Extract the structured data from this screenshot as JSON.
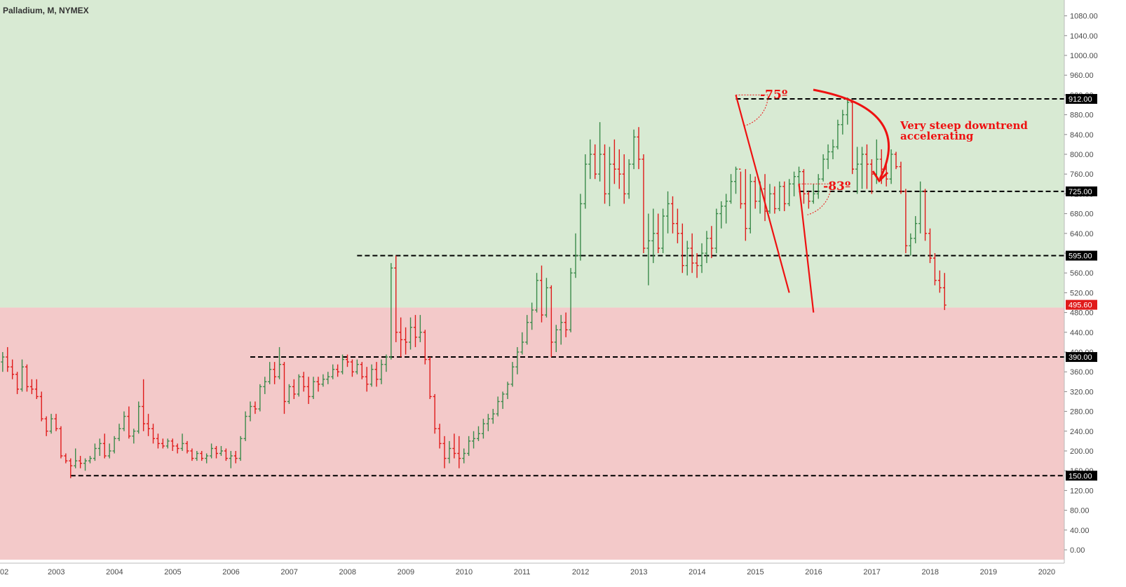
{
  "colors": {
    "up": "#3a8a4a",
    "down": "#e01a1a",
    "bg_bull": "#d8ead3",
    "bg_bear": "#f3c9c9",
    "line": "#000000",
    "annotation": "#ee1111",
    "tag_dark": "#000000",
    "tag_last": "#e01a1a"
  },
  "chart_data": {
    "type": "ohlc",
    "title": "Palladium, M, NYMEX",
    "interval": "monthly",
    "y_range": [
      -20,
      1120
    ],
    "y_ticks": [
      "0.00",
      "40.00",
      "80.00",
      "120.00",
      "160.00",
      "200.00",
      "240.00",
      "280.00",
      "320.00",
      "360.00",
      "400.00",
      "440.00",
      "480.00",
      "520.00",
      "560.00",
      "600.00",
      "640.00",
      "680.00",
      "720.00",
      "760.00",
      "800.00",
      "840.00",
      "880.00",
      "920.00",
      "960.00",
      "1000.00",
      "1040.00",
      "1080.00"
    ],
    "x_start": "2002-01",
    "x_end": "2020-03",
    "x_ticks": [
      "02",
      "2003",
      "2004",
      "2005",
      "2006",
      "2007",
      "2008",
      "2009",
      "2010",
      "2011",
      "2012",
      "2013",
      "2014",
      "2015",
      "2016",
      "2017",
      "2018",
      "2019",
      "2020"
    ],
    "zones": [
      {
        "name": "bullish",
        "from": 490,
        "to": 1120
      },
      {
        "name": "bearish",
        "from": -20,
        "to": 490
      }
    ],
    "levels": [
      {
        "value": 912,
        "label": "912.00",
        "start": "2014-09"
      },
      {
        "value": 725,
        "label": "725.00",
        "start": "2015-10"
      },
      {
        "value": 595,
        "label": "595.00",
        "start": "2008-03"
      },
      {
        "value": 390,
        "label": "390.00",
        "start": "2006-05"
      },
      {
        "value": 150,
        "label": "150.00",
        "start": "2003-04"
      }
    ],
    "last_price": {
      "value": 495.6,
      "label": "495.60"
    },
    "trendlines": [
      {
        "from": [
          "2014-09",
          920
        ],
        "to": [
          "2015-08",
          520
        ]
      },
      {
        "from": [
          "2015-10",
          740
        ],
        "to": [
          "2016-01",
          480
        ]
      }
    ],
    "angle_labels": [
      {
        "text": "-75º",
        "at": [
          "2015-02",
          910
        ]
      },
      {
        "text": "-83º",
        "at": [
          "2016-03",
          725
        ]
      }
    ],
    "annotation": {
      "lines": [
        "Very steep downtrend",
        "accelerating"
      ],
      "at": [
        "2016-08",
        832
      ]
    },
    "ohlc": [
      [
        "2002-01",
        400,
        405,
        370,
        380
      ],
      [
        "2002-02",
        380,
        400,
        360,
        390
      ],
      [
        "2002-03",
        390,
        410,
        360,
        370
      ],
      [
        "2002-04",
        370,
        385,
        345,
        355
      ],
      [
        "2002-05",
        355,
        360,
        315,
        325
      ],
      [
        "2002-06",
        325,
        385,
        320,
        370
      ],
      [
        "2002-07",
        370,
        375,
        320,
        330
      ],
      [
        "2002-08",
        330,
        345,
        315,
        325
      ],
      [
        "2002-09",
        325,
        345,
        305,
        310
      ],
      [
        "2002-10",
        310,
        320,
        260,
        265
      ],
      [
        "2002-11",
        265,
        270,
        230,
        240
      ],
      [
        "2002-12",
        240,
        275,
        235,
        265
      ],
      [
        "2003-01",
        265,
        275,
        240,
        245
      ],
      [
        "2003-02",
        245,
        250,
        185,
        190
      ],
      [
        "2003-03",
        190,
        195,
        175,
        180
      ],
      [
        "2003-04",
        180,
        185,
        145,
        170
      ],
      [
        "2003-05",
        170,
        205,
        165,
        180
      ],
      [
        "2003-06",
        180,
        190,
        165,
        175
      ],
      [
        "2003-07",
        175,
        185,
        160,
        180
      ],
      [
        "2003-08",
        180,
        190,
        175,
        185
      ],
      [
        "2003-09",
        185,
        215,
        180,
        205
      ],
      [
        "2003-10",
        205,
        225,
        190,
        215
      ],
      [
        "2003-11",
        215,
        235,
        185,
        190
      ],
      [
        "2003-12",
        190,
        215,
        185,
        200
      ],
      [
        "2004-01",
        200,
        230,
        195,
        225
      ],
      [
        "2004-02",
        225,
        255,
        220,
        245
      ],
      [
        "2004-03",
        245,
        280,
        240,
        270
      ],
      [
        "2004-04",
        270,
        290,
        225,
        230
      ],
      [
        "2004-05",
        230,
        245,
        215,
        240
      ],
      [
        "2004-06",
        240,
        300,
        235,
        290
      ],
      [
        "2004-07",
        290,
        345,
        240,
        255
      ],
      [
        "2004-08",
        255,
        275,
        230,
        245
      ],
      [
        "2004-09",
        245,
        255,
        215,
        225
      ],
      [
        "2004-10",
        225,
        235,
        205,
        215
      ],
      [
        "2004-11",
        215,
        225,
        205,
        210
      ],
      [
        "2004-12",
        210,
        225,
        205,
        220
      ],
      [
        "2005-01",
        220,
        225,
        200,
        210
      ],
      [
        "2005-02",
        210,
        215,
        195,
        205
      ],
      [
        "2005-03",
        205,
        235,
        200,
        215
      ],
      [
        "2005-04",
        215,
        220,
        195,
        200
      ],
      [
        "2005-05",
        200,
        205,
        180,
        185
      ],
      [
        "2005-06",
        185,
        200,
        180,
        195
      ],
      [
        "2005-07",
        195,
        200,
        180,
        185
      ],
      [
        "2005-08",
        185,
        195,
        175,
        190
      ],
      [
        "2005-09",
        190,
        215,
        185,
        205
      ],
      [
        "2005-10",
        205,
        210,
        185,
        195
      ],
      [
        "2005-11",
        195,
        210,
        190,
        200
      ],
      [
        "2005-12",
        200,
        205,
        180,
        185
      ],
      [
        "2006-01",
        185,
        200,
        165,
        190
      ],
      [
        "2006-02",
        190,
        200,
        175,
        185
      ],
      [
        "2006-03",
        185,
        230,
        180,
        225
      ],
      [
        "2006-04",
        225,
        280,
        220,
        270
      ],
      [
        "2006-05",
        270,
        300,
        260,
        290
      ],
      [
        "2006-06",
        290,
        300,
        275,
        285
      ],
      [
        "2006-07",
        285,
        335,
        280,
        330
      ],
      [
        "2006-08",
        330,
        350,
        315,
        340
      ],
      [
        "2006-09",
        340,
        380,
        335,
        365
      ],
      [
        "2006-10",
        365,
        380,
        335,
        350
      ],
      [
        "2006-11",
        350,
        410,
        345,
        375
      ],
      [
        "2006-12",
        375,
        380,
        275,
        300
      ],
      [
        "2007-01",
        300,
        335,
        295,
        330
      ],
      [
        "2007-02",
        330,
        345,
        305,
        315
      ],
      [
        "2007-03",
        315,
        355,
        310,
        350
      ],
      [
        "2007-04",
        350,
        360,
        320,
        330
      ],
      [
        "2007-05",
        330,
        350,
        295,
        310
      ],
      [
        "2007-06",
        310,
        350,
        305,
        340
      ],
      [
        "2007-07",
        340,
        350,
        320,
        335
      ],
      [
        "2007-08",
        335,
        355,
        330,
        345
      ],
      [
        "2007-09",
        345,
        360,
        335,
        350
      ],
      [
        "2007-10",
        350,
        375,
        345,
        365
      ],
      [
        "2007-11",
        365,
        375,
        350,
        360
      ],
      [
        "2007-12",
        360,
        395,
        355,
        385
      ],
      [
        "2008-01",
        385,
        395,
        370,
        380
      ],
      [
        "2008-02",
        380,
        385,
        350,
        360
      ],
      [
        "2008-03",
        360,
        385,
        355,
        375
      ],
      [
        "2008-04",
        375,
        380,
        345,
        350
      ],
      [
        "2008-05",
        350,
        370,
        320,
        335
      ],
      [
        "2008-06",
        335,
        375,
        330,
        365
      ],
      [
        "2008-07",
        365,
        380,
        330,
        345
      ],
      [
        "2008-08",
        345,
        385,
        335,
        375
      ],
      [
        "2008-09",
        375,
        395,
        360,
        390
      ],
      [
        "2008-10",
        390,
        580,
        385,
        570
      ],
      [
        "2008-11",
        570,
        595,
        420,
        440
      ],
      [
        "2008-12",
        440,
        470,
        390,
        425
      ],
      [
        "2009-01",
        425,
        450,
        395,
        420
      ],
      [
        "2009-02",
        420,
        470,
        405,
        450
      ],
      [
        "2009-03",
        450,
        475,
        410,
        430
      ],
      [
        "2009-04",
        430,
        475,
        420,
        440
      ],
      [
        "2009-05",
        440,
        445,
        375,
        385
      ],
      [
        "2009-06",
        385,
        390,
        305,
        310
      ],
      [
        "2009-07",
        310,
        315,
        235,
        245
      ],
      [
        "2009-08",
        245,
        255,
        205,
        215
      ],
      [
        "2009-09",
        215,
        230,
        165,
        185
      ],
      [
        "2009-10",
        185,
        220,
        175,
        205
      ],
      [
        "2009-11",
        205,
        235,
        185,
        195
      ],
      [
        "2009-12",
        195,
        230,
        165,
        185
      ],
      [
        "2010-01",
        185,
        205,
        175,
        195
      ],
      [
        "2010-02",
        195,
        230,
        190,
        220
      ],
      [
        "2010-03",
        220,
        240,
        205,
        225
      ],
      [
        "2010-04",
        225,
        250,
        220,
        235
      ],
      [
        "2010-05",
        235,
        265,
        225,
        255
      ],
      [
        "2010-06",
        255,
        275,
        240,
        265
      ],
      [
        "2010-07",
        265,
        285,
        255,
        275
      ],
      [
        "2010-08",
        275,
        310,
        270,
        300
      ],
      [
        "2010-09",
        300,
        320,
        285,
        315
      ],
      [
        "2010-10",
        315,
        340,
        305,
        335
      ],
      [
        "2010-11",
        335,
        380,
        330,
        370
      ],
      [
        "2010-12",
        370,
        410,
        355,
        400
      ],
      [
        "2011-01",
        400,
        440,
        395,
        420
      ],
      [
        "2011-02",
        420,
        475,
        415,
        460
      ],
      [
        "2011-03",
        460,
        500,
        445,
        485
      ],
      [
        "2011-04",
        485,
        560,
        480,
        545
      ],
      [
        "2011-05",
        545,
        575,
        460,
        475
      ],
      [
        "2011-06",
        475,
        550,
        470,
        530
      ],
      [
        "2011-07",
        530,
        535,
        390,
        420
      ],
      [
        "2011-08",
        420,
        455,
        400,
        445
      ],
      [
        "2011-09",
        445,
        475,
        415,
        460
      ],
      [
        "2011-10",
        460,
        480,
        430,
        445
      ],
      [
        "2011-11",
        445,
        570,
        440,
        560
      ],
      [
        "2011-12",
        560,
        640,
        550,
        595
      ],
      [
        "2012-01",
        595,
        720,
        585,
        700
      ],
      [
        "2012-02",
        700,
        800,
        690,
        780
      ],
      [
        "2012-03",
        780,
        830,
        750,
        800
      ],
      [
        "2012-04",
        800,
        820,
        750,
        760
      ],
      [
        "2012-05",
        760,
        865,
        745,
        800
      ],
      [
        "2012-06",
        800,
        820,
        700,
        720
      ],
      [
        "2012-07",
        720,
        815,
        695,
        780
      ],
      [
        "2012-08",
        780,
        830,
        740,
        770
      ],
      [
        "2012-09",
        770,
        810,
        730,
        760
      ],
      [
        "2012-10",
        760,
        800,
        700,
        720
      ],
      [
        "2012-11",
        720,
        790,
        710,
        780
      ],
      [
        "2012-12",
        780,
        850,
        770,
        835
      ],
      [
        "2013-01",
        835,
        855,
        770,
        790
      ],
      [
        "2013-02",
        790,
        800,
        600,
        610
      ],
      [
        "2013-03",
        610,
        680,
        535,
        625
      ],
      [
        "2013-04",
        625,
        690,
        580,
        640
      ],
      [
        "2013-05",
        640,
        680,
        600,
        610
      ],
      [
        "2013-06",
        610,
        690,
        600,
        675
      ],
      [
        "2013-07",
        675,
        725,
        640,
        700
      ],
      [
        "2013-08",
        700,
        715,
        640,
        660
      ],
      [
        "2013-09",
        660,
        690,
        620,
        640
      ],
      [
        "2013-10",
        640,
        660,
        560,
        575
      ],
      [
        "2013-11",
        575,
        625,
        555,
        610
      ],
      [
        "2013-12",
        610,
        640,
        560,
        580
      ],
      [
        "2014-01",
        580,
        600,
        550,
        575
      ],
      [
        "2014-02",
        575,
        620,
        560,
        600
      ],
      [
        "2014-03",
        600,
        645,
        580,
        630
      ],
      [
        "2014-04",
        630,
        655,
        590,
        610
      ],
      [
        "2014-05",
        610,
        690,
        600,
        680
      ],
      [
        "2014-06",
        680,
        705,
        650,
        695
      ],
      [
        "2014-07",
        695,
        720,
        660,
        705
      ],
      [
        "2014-08",
        705,
        760,
        700,
        745
      ],
      [
        "2014-09",
        745,
        775,
        720,
        770
      ],
      [
        "2014-10",
        770,
        765,
        690,
        700
      ],
      [
        "2014-11",
        700,
        770,
        625,
        650
      ],
      [
        "2014-12",
        650,
        760,
        640,
        745
      ],
      [
        "2015-01",
        745,
        755,
        690,
        705
      ],
      [
        "2015-02",
        705,
        745,
        680,
        730
      ],
      [
        "2015-03",
        730,
        760,
        665,
        685
      ],
      [
        "2015-04",
        685,
        740,
        680,
        720
      ],
      [
        "2015-05",
        720,
        735,
        680,
        690
      ],
      [
        "2015-06",
        690,
        745,
        685,
        735
      ],
      [
        "2015-07",
        735,
        745,
        685,
        700
      ],
      [
        "2015-08",
        700,
        750,
        695,
        740
      ],
      [
        "2015-09",
        740,
        765,
        715,
        755
      ],
      [
        "2015-10",
        755,
        775,
        735,
        765
      ],
      [
        "2015-11",
        765,
        770,
        700,
        720
      ],
      [
        "2015-12",
        720,
        725,
        690,
        705
      ],
      [
        "2016-01",
        705,
        740,
        700,
        720
      ],
      [
        "2016-02",
        720,
        760,
        710,
        750
      ],
      [
        "2016-03",
        750,
        800,
        745,
        790
      ],
      [
        "2016-04",
        790,
        820,
        770,
        805
      ],
      [
        "2016-05",
        805,
        830,
        790,
        815
      ],
      [
        "2016-06",
        815,
        870,
        810,
        860
      ],
      [
        "2016-07",
        860,
        890,
        840,
        880
      ],
      [
        "2016-08",
        880,
        915,
        860,
        905
      ],
      [
        "2016-09",
        905,
        910,
        760,
        770
      ],
      [
        "2016-10",
        770,
        815,
        720,
        780
      ],
      [
        "2016-11",
        780,
        815,
        730,
        800
      ],
      [
        "2016-12",
        800,
        820,
        730,
        780
      ],
      [
        "2017-01",
        780,
        790,
        720,
        760
      ],
      [
        "2017-02",
        760,
        830,
        740,
        790
      ],
      [
        "2017-03",
        790,
        810,
        740,
        770
      ],
      [
        "2017-04",
        770,
        780,
        735,
        750
      ],
      [
        "2017-05",
        750,
        810,
        740,
        800
      ],
      [
        "2017-06",
        800,
        805,
        770,
        775
      ],
      [
        "2017-07",
        775,
        785,
        720,
        725
      ],
      [
        "2017-08",
        725,
        730,
        600,
        615
      ],
      [
        "2017-09",
        615,
        640,
        595,
        630
      ],
      [
        "2017-10",
        630,
        675,
        620,
        660
      ],
      [
        "2017-11",
        660,
        745,
        640,
        725
      ],
      [
        "2017-12",
        725,
        730,
        625,
        640
      ],
      [
        "2018-01",
        640,
        650,
        580,
        590
      ],
      [
        "2018-02",
        590,
        600,
        535,
        545
      ],
      [
        "2018-03",
        545,
        565,
        520,
        530
      ],
      [
        "2018-04",
        530,
        560,
        485,
        495
      ]
    ]
  }
}
